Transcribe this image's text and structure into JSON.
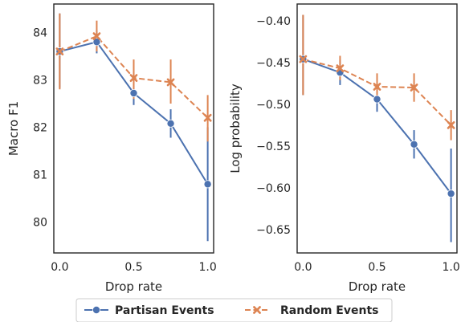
{
  "chart_data": [
    {
      "type": "line",
      "xlabel": "Drop rate",
      "ylabel": "Macro F1",
      "x": [
        0.0,
        0.25,
        0.5,
        0.75,
        1.0
      ],
      "xticks": [
        "0.0",
        "0.5",
        "1.0"
      ],
      "xtick_values": [
        0.0,
        0.5,
        1.0
      ],
      "xlim": [
        -0.04,
        1.04
      ],
      "ylim": [
        79.35,
        84.6
      ],
      "yticks": [
        "80",
        "81",
        "82",
        "83",
        "84"
      ],
      "ytick_values": [
        80,
        81,
        82,
        83,
        84
      ],
      "grid": false,
      "series": [
        {
          "name": "Partisan Events",
          "values": [
            83.6,
            83.8,
            82.72,
            82.08,
            80.8
          ],
          "err_low": [
            82.83,
            83.56,
            82.47,
            81.78,
            79.6
          ],
          "err_high": [
            84.4,
            84.05,
            83.0,
            82.38,
            82.0
          ]
        },
        {
          "name": "Random Events",
          "values": [
            83.6,
            83.92,
            83.04,
            82.95,
            82.2
          ],
          "err_low": [
            82.8,
            83.6,
            82.6,
            82.5,
            81.7
          ],
          "err_high": [
            84.4,
            84.25,
            83.43,
            83.43,
            82.68
          ]
        }
      ]
    },
    {
      "type": "line",
      "xlabel": "Drop rate",
      "ylabel": "Log probability",
      "x": [
        0.0,
        0.25,
        0.5,
        0.75,
        1.0
      ],
      "xticks": [
        "0.0",
        "0.5",
        "1.0"
      ],
      "xtick_values": [
        0.0,
        0.5,
        1.0
      ],
      "xlim": [
        -0.04,
        1.04
      ],
      "ylim": [
        -0.678,
        -0.38
      ],
      "yticks": [
        "−0.40",
        "−0.45",
        "−0.50",
        "−0.55",
        "−0.60",
        "−0.65"
      ],
      "ytick_values": [
        -0.4,
        -0.45,
        -0.5,
        -0.55,
        -0.6,
        -0.65
      ],
      "grid": false,
      "series": [
        {
          "name": "Partisan Events",
          "values": [
            -0.446,
            -0.462,
            -0.494,
            -0.548,
            -0.607
          ],
          "err_low": [
            -0.489,
            -0.477,
            -0.509,
            -0.565,
            -0.665
          ],
          "err_high": [
            -0.393,
            -0.447,
            -0.479,
            -0.531,
            -0.553
          ]
        },
        {
          "name": "Random Events",
          "values": [
            -0.446,
            -0.457,
            -0.479,
            -0.48,
            -0.525
          ],
          "err_low": [
            -0.489,
            -0.471,
            -0.492,
            -0.497,
            -0.543
          ],
          "err_high": [
            -0.393,
            -0.442,
            -0.463,
            -0.463,
            -0.507
          ]
        }
      ]
    }
  ],
  "legend": {
    "placement": "bottom-center",
    "items": [
      {
        "label": "Partisan Events",
        "color": "#4c72b0",
        "marker": "circle",
        "dash": "solid"
      },
      {
        "label": "Random Events",
        "color": "#dd8452",
        "marker": "x",
        "dash": "dashed"
      }
    ]
  },
  "colors": {
    "partisan": "#4c72b0",
    "random": "#dd8452",
    "axes": "#262626"
  }
}
